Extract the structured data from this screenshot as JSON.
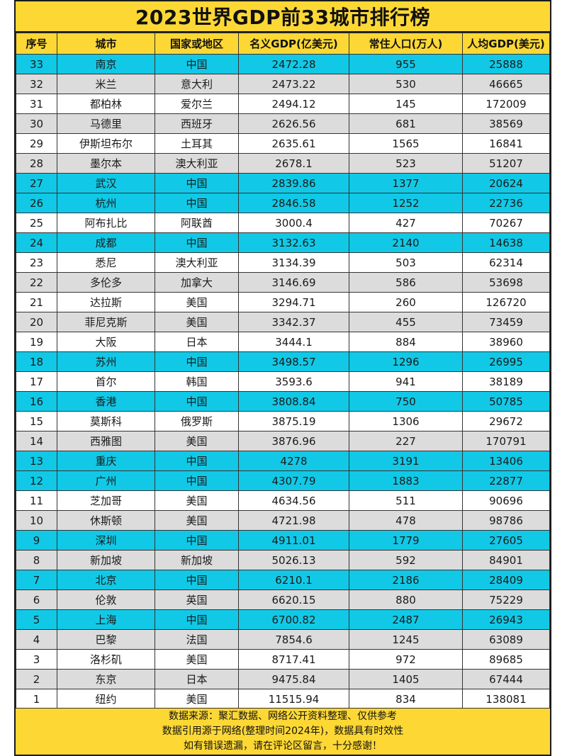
{
  "title": "2023世界GDP前33城市排行榜",
  "headers": {
    "rank": "序号",
    "city": "城市",
    "country": "国家或地区",
    "gdp": "名义GDP(亿美元)",
    "population": "常住人口(万人)",
    "per_capita": "人均GDP(美元)"
  },
  "row_colors": {
    "china": "#11c9e6",
    "grey": "#dcdcdc",
    "white": "#ffffff",
    "header": "#fdd835"
  },
  "rows": [
    {
      "rank": "33",
      "city": "南京",
      "country": "中国",
      "gdp": "2472.28",
      "population": "955",
      "per_capita": "25888",
      "style": "cyan"
    },
    {
      "rank": "32",
      "city": "米兰",
      "country": "意大利",
      "gdp": "2473.22",
      "population": "530",
      "per_capita": "46665",
      "style": "grey"
    },
    {
      "rank": "31",
      "city": "都柏林",
      "country": "爱尔兰",
      "gdp": "2494.12",
      "population": "145",
      "per_capita": "172009",
      "style": "white"
    },
    {
      "rank": "30",
      "city": "马德里",
      "country": "西班牙",
      "gdp": "2626.56",
      "population": "681",
      "per_capita": "38569",
      "style": "grey"
    },
    {
      "rank": "29",
      "city": "伊斯坦布尔",
      "country": "土耳其",
      "gdp": "2635.61",
      "population": "1565",
      "per_capita": "16841",
      "style": "white"
    },
    {
      "rank": "28",
      "city": "墨尔本",
      "country": "澳大利亚",
      "gdp": "2678.1",
      "population": "523",
      "per_capita": "51207",
      "style": "grey"
    },
    {
      "rank": "27",
      "city": "武汉",
      "country": "中国",
      "gdp": "2839.86",
      "population": "1377",
      "per_capita": "20624",
      "style": "cyan"
    },
    {
      "rank": "26",
      "city": "杭州",
      "country": "中国",
      "gdp": "2846.58",
      "population": "1252",
      "per_capita": "22736",
      "style": "cyan"
    },
    {
      "rank": "25",
      "city": "阿布扎比",
      "country": "阿联酋",
      "gdp": "3000.4",
      "population": "427",
      "per_capita": "70267",
      "style": "white"
    },
    {
      "rank": "24",
      "city": "成都",
      "country": "中国",
      "gdp": "3132.63",
      "population": "2140",
      "per_capita": "14638",
      "style": "cyan"
    },
    {
      "rank": "23",
      "city": "悉尼",
      "country": "澳大利亚",
      "gdp": "3134.39",
      "population": "503",
      "per_capita": "62314",
      "style": "white"
    },
    {
      "rank": "22",
      "city": "多伦多",
      "country": "加拿大",
      "gdp": "3146.69",
      "population": "586",
      "per_capita": "53698",
      "style": "grey"
    },
    {
      "rank": "21",
      "city": "达拉斯",
      "country": "美国",
      "gdp": "3294.71",
      "population": "260",
      "per_capita": "126720",
      "style": "white"
    },
    {
      "rank": "20",
      "city": "菲尼克斯",
      "country": "美国",
      "gdp": "3342.37",
      "population": "455",
      "per_capita": "73459",
      "style": "grey"
    },
    {
      "rank": "19",
      "city": "大阪",
      "country": "日本",
      "gdp": "3444.1",
      "population": "884",
      "per_capita": "38960",
      "style": "white"
    },
    {
      "rank": "18",
      "city": "苏州",
      "country": "中国",
      "gdp": "3498.57",
      "population": "1296",
      "per_capita": "26995",
      "style": "cyan"
    },
    {
      "rank": "17",
      "city": "首尔",
      "country": "韩国",
      "gdp": "3593.6",
      "population": "941",
      "per_capita": "38189",
      "style": "white"
    },
    {
      "rank": "16",
      "city": "香港",
      "country": "中国",
      "gdp": "3808.84",
      "population": "750",
      "per_capita": "50785",
      "style": "cyan"
    },
    {
      "rank": "15",
      "city": "莫斯科",
      "country": "俄罗斯",
      "gdp": "3875.19",
      "population": "1306",
      "per_capita": "29672",
      "style": "white"
    },
    {
      "rank": "14",
      "city": "西雅图",
      "country": "美国",
      "gdp": "3876.96",
      "population": "227",
      "per_capita": "170791",
      "style": "grey"
    },
    {
      "rank": "13",
      "city": "重庆",
      "country": "中国",
      "gdp": "4278",
      "population": "3191",
      "per_capita": "13406",
      "style": "cyan"
    },
    {
      "rank": "12",
      "city": "广州",
      "country": "中国",
      "gdp": "4307.79",
      "population": "1883",
      "per_capita": "22877",
      "style": "cyan"
    },
    {
      "rank": "11",
      "city": "芝加哥",
      "country": "美国",
      "gdp": "4634.56",
      "population": "511",
      "per_capita": "90696",
      "style": "white"
    },
    {
      "rank": "10",
      "city": "休斯顿",
      "country": "美国",
      "gdp": "4721.98",
      "population": "478",
      "per_capita": "98786",
      "style": "grey"
    },
    {
      "rank": "9",
      "city": "深圳",
      "country": "中国",
      "gdp": "4911.01",
      "population": "1779",
      "per_capita": "27605",
      "style": "cyan"
    },
    {
      "rank": "8",
      "city": "新加坡",
      "country": "新加坡",
      "gdp": "5026.13",
      "population": "592",
      "per_capita": "84901",
      "style": "grey"
    },
    {
      "rank": "7",
      "city": "北京",
      "country": "中国",
      "gdp": "6210.1",
      "population": "2186",
      "per_capita": "28409",
      "style": "cyan"
    },
    {
      "rank": "6",
      "city": "伦敦",
      "country": "英国",
      "gdp": "6620.15",
      "population": "880",
      "per_capita": "75229",
      "style": "grey"
    },
    {
      "rank": "5",
      "city": "上海",
      "country": "中国",
      "gdp": "6700.82",
      "population": "2487",
      "per_capita": "26943",
      "style": "cyan"
    },
    {
      "rank": "4",
      "city": "巴黎",
      "country": "法国",
      "gdp": "7854.6",
      "population": "1245",
      "per_capita": "63089",
      "style": "grey"
    },
    {
      "rank": "3",
      "city": "洛杉矶",
      "country": "美国",
      "gdp": "8717.41",
      "population": "972",
      "per_capita": "89685",
      "style": "white"
    },
    {
      "rank": "2",
      "city": "东京",
      "country": "日本",
      "gdp": "9475.84",
      "population": "1405",
      "per_capita": "67444",
      "style": "grey"
    },
    {
      "rank": "1",
      "city": "纽约",
      "country": "美国",
      "gdp": "11515.94",
      "population": "834",
      "per_capita": "138081",
      "style": "white"
    }
  ],
  "footer": {
    "line1": "数据来源：聚汇数据、网络公开资料整理、仅供参考",
    "line2": "数据引用源于网络(整理时间2024年)，数据具有时效性",
    "line3": "如有错误遗漏，请在评论区留言，十分感谢！"
  }
}
